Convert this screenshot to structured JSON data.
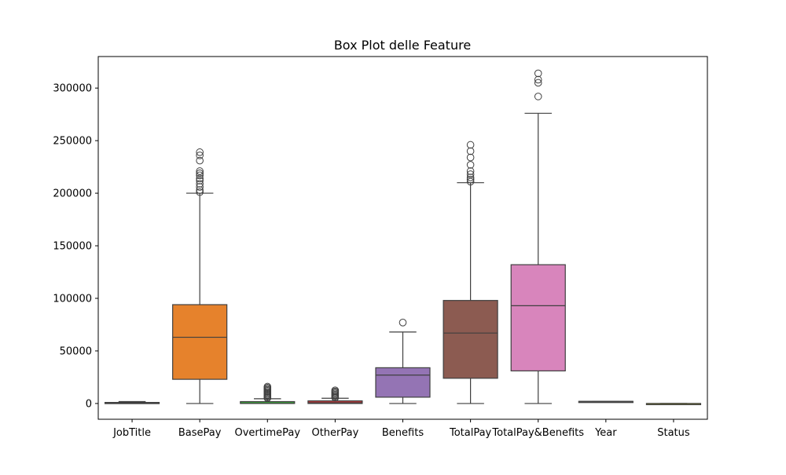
{
  "chart_data": {
    "type": "box",
    "title": "Box Plot delle Feature",
    "xlabel": "",
    "ylabel": "",
    "ylim": [
      -15000,
      330000
    ],
    "yticks": [
      0,
      50000,
      100000,
      150000,
      200000,
      250000,
      300000
    ],
    "grid": false,
    "categories": [
      "JobTitle",
      "BasePay",
      "OvertimePay",
      "OtherPay",
      "Benefits",
      "TotalPay",
      "TotalPay&Benefits",
      "Year",
      "Status"
    ],
    "colors": [
      "#3a78b0",
      "#e6822c",
      "#3d9e3d",
      "#c03d3e",
      "#9474b4",
      "#8c5b51",
      "#d885bc",
      "#7f7f7f",
      "#bcbc35"
    ],
    "series": [
      {
        "category": "JobTitle",
        "whislo": 0,
        "q1": 0,
        "median": 400,
        "q3": 1000,
        "whishi": 1800,
        "fliers": []
      },
      {
        "category": "BasePay",
        "whislo": 0,
        "q1": 23000,
        "median": 63000,
        "q3": 94000,
        "whishi": 200000,
        "fliers": [
          201000,
          203000,
          206000,
          209000,
          212000,
          214000,
          217000,
          219000,
          221000,
          231000,
          236000,
          239000
        ]
      },
      {
        "category": "OvertimePay",
        "whislo": 0,
        "q1": 0,
        "median": 0,
        "q3": 1800,
        "whishi": 4500,
        "fliers": [
          5200,
          6000,
          7000,
          8000,
          9000,
          10000,
          11000,
          12000,
          13000,
          14000,
          15000,
          16000
        ]
      },
      {
        "category": "OtherPay",
        "whislo": 0,
        "q1": 0,
        "median": 600,
        "q3": 2500,
        "whishi": 5000,
        "fliers": [
          5500,
          6500,
          7500,
          8500,
          9500,
          10500,
          11500,
          12500
        ]
      },
      {
        "category": "Benefits",
        "whislo": 0,
        "q1": 6000,
        "median": 27000,
        "q3": 34000,
        "whishi": 68000,
        "fliers": [
          77000
        ]
      },
      {
        "category": "TotalPay",
        "whislo": 0,
        "q1": 24000,
        "median": 67000,
        "q3": 98000,
        "whishi": 210000,
        "fliers": [
          211000,
          213000,
          215000,
          218000,
          221000,
          227000,
          234000,
          240000,
          246000
        ]
      },
      {
        "category": "TotalPay&Benefits",
        "whislo": 0,
        "q1": 31000,
        "median": 93000,
        "q3": 132000,
        "whishi": 276000,
        "fliers": [
          292000,
          305000,
          308000,
          314000
        ]
      },
      {
        "category": "Year",
        "whislo": 2011,
        "q1": 2012,
        "median": 2012,
        "q3": 2013,
        "whishi": 2014,
        "fliers": []
      },
      {
        "category": "Status",
        "whislo": 0,
        "q1": 0,
        "median": 0,
        "q3": 0,
        "whishi": 0,
        "fliers": []
      }
    ]
  }
}
